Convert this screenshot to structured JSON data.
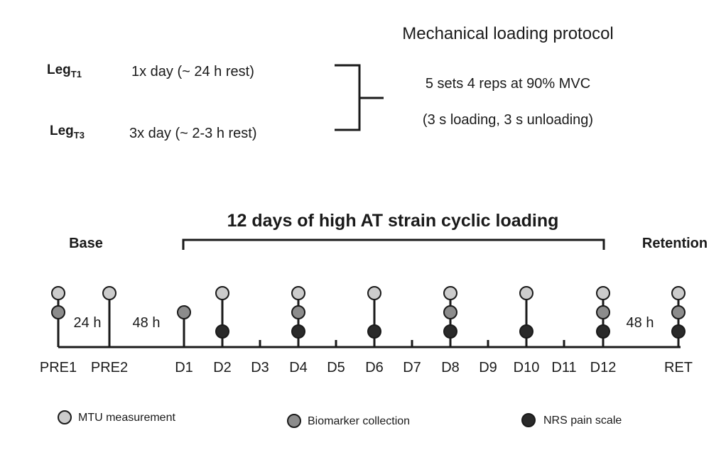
{
  "protocol": {
    "title": "Mechanical loading protocol",
    "leg_t1": {
      "main": "Leg",
      "sub": "T1",
      "frequency": "1x day (~ 24 h rest)"
    },
    "leg_t3": {
      "main": "Leg",
      "sub": "T3",
      "frequency": "3x day (~ 2-3 h rest)"
    },
    "sets_text": "5 sets 4 reps at 90% MVC",
    "timing_text": "(3 s loading, 3 s unloading)"
  },
  "timeline": {
    "loading_title": "12 days of high AT strain cyclic loading",
    "base_label": "Base",
    "retention_label": "Retention",
    "interval_24h": "24 h",
    "interval_48h_pre": "48 h",
    "interval_48h_post": "48 h",
    "days": [
      {
        "label": "PRE1",
        "markers": [
          "mtu",
          "bio"
        ]
      },
      {
        "label": "PRE2",
        "markers": [
          "mtu"
        ]
      },
      {
        "label": "D1",
        "markers": [
          "bio"
        ]
      },
      {
        "label": "D2",
        "markers": [
          "mtu",
          "nrs"
        ]
      },
      {
        "label": "D3",
        "markers": []
      },
      {
        "label": "D4",
        "markers": [
          "mtu",
          "bio",
          "nrs"
        ]
      },
      {
        "label": "D5",
        "markers": []
      },
      {
        "label": "D6",
        "markers": [
          "mtu",
          "nrs"
        ]
      },
      {
        "label": "D7",
        "markers": []
      },
      {
        "label": "D8",
        "markers": [
          "mtu",
          "bio",
          "nrs"
        ]
      },
      {
        "label": "D9",
        "markers": []
      },
      {
        "label": "D10",
        "markers": [
          "mtu",
          "nrs"
        ]
      },
      {
        "label": "D11",
        "markers": []
      },
      {
        "label": "D12",
        "markers": [
          "mtu",
          "bio",
          "nrs"
        ]
      },
      {
        "label": "RET",
        "markers": [
          "mtu",
          "bio",
          "nrs"
        ]
      }
    ]
  },
  "legend": {
    "mtu": {
      "label": "MTU measurement",
      "color": "#cccccc"
    },
    "bio": {
      "label": "Biomarker collection",
      "color": "#8c8c8c"
    },
    "nrs": {
      "label": "NRS pain scale",
      "color": "#2a2a2a"
    }
  }
}
